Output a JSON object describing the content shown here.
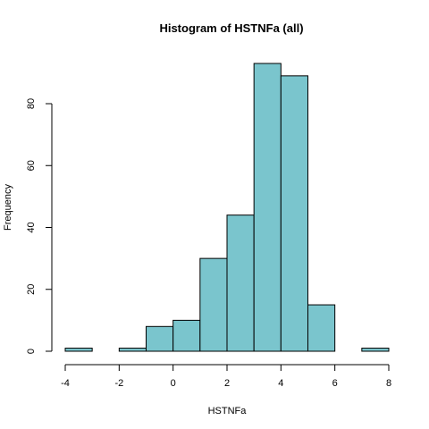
{
  "chart_data": {
    "type": "bar",
    "title": "Histogram of HSTNFa (all)",
    "xlabel": "HSTNFa",
    "ylabel": "Frequency",
    "bin_edges": [
      -4,
      -3,
      -2,
      -1,
      0,
      1,
      2,
      3,
      4,
      5,
      6,
      7,
      8
    ],
    "values": [
      1,
      0,
      1,
      8,
      10,
      30,
      44,
      93,
      89,
      15,
      0,
      1
    ],
    "xlim": [
      -4,
      8
    ],
    "ylim": [
      0,
      93
    ],
    "x_ticks": [
      -4,
      -2,
      0,
      2,
      4,
      6,
      8
    ],
    "y_ticks": [
      0,
      20,
      40,
      60,
      80
    ],
    "bar_color": "#7ac5cd",
    "grid": false,
    "legend": "none"
  }
}
